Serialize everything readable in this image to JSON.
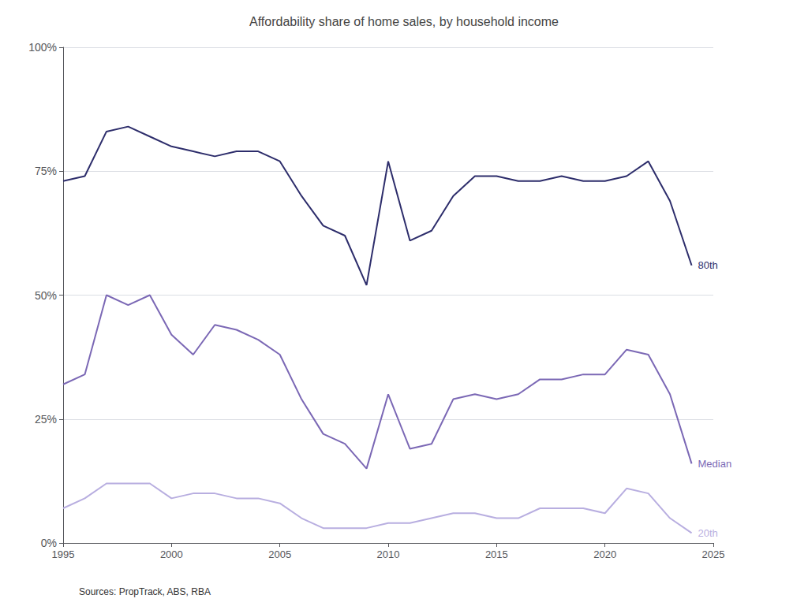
{
  "chart_data": {
    "type": "line",
    "title": "Affordability share of home sales, by household income",
    "annotations": [
      "Sources: PropTrack, ABS, RBA"
    ],
    "x": [
      1995,
      1996,
      1997,
      1998,
      1999,
      2000,
      2001,
      2002,
      2003,
      2004,
      2005,
      2006,
      2007,
      2008,
      2009,
      2010,
      2011,
      2012,
      2013,
      2014,
      2015,
      2016,
      2017,
      2018,
      2019,
      2020,
      2021,
      2022,
      2023,
      2024
    ],
    "series": [
      {
        "name": "80th",
        "color": "#2d2d6b",
        "values": [
          73,
          74,
          83,
          84,
          82,
          80,
          79,
          78,
          79,
          79,
          77,
          70,
          64,
          62,
          52,
          77,
          61,
          63,
          70,
          74,
          74,
          73,
          73,
          74,
          73,
          73,
          74,
          77,
          69,
          56
        ]
      },
      {
        "name": "Median",
        "color": "#7b68b5",
        "values": [
          32,
          34,
          50,
          48,
          50,
          42,
          38,
          44,
          43,
          41,
          38,
          29,
          22,
          20,
          15,
          30,
          19,
          20,
          29,
          30,
          29,
          30,
          33,
          33,
          34,
          34,
          39,
          38,
          30,
          16
        ]
      },
      {
        "name": "20th",
        "color": "#b8aee0",
        "values": [
          7,
          9,
          12,
          12,
          12,
          9,
          10,
          10,
          9,
          9,
          8,
          5,
          3,
          3,
          3,
          4,
          4,
          5,
          6,
          6,
          5,
          5,
          7,
          7,
          7,
          6,
          11,
          10,
          5,
          2
        ]
      }
    ],
    "xlim": [
      1995,
      2025
    ],
    "xticks": [
      1995,
      2000,
      2005,
      2010,
      2015,
      2020,
      2025
    ],
    "ylim": [
      0,
      100
    ],
    "yticks": [
      {
        "value": 0,
        "label": "0%"
      },
      {
        "value": 25,
        "label": "25%"
      },
      {
        "value": 50,
        "label": "50%"
      },
      {
        "value": 75,
        "label": "75%"
      },
      {
        "value": 100,
        "label": "100%"
      }
    ],
    "grid": true
  }
}
